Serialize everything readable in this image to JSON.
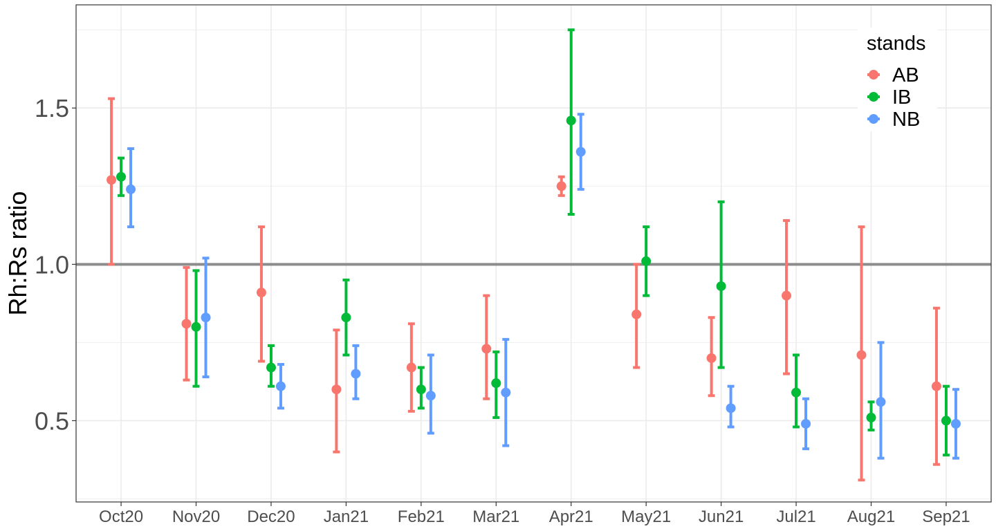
{
  "chart_data": {
    "type": "scatter",
    "subtype": "point-range",
    "ylabel": "Rh:Rs ratio",
    "xlabel": "",
    "categories": [
      "Oct20",
      "Nov20",
      "Dec20",
      "Jan21",
      "Feb21",
      "Mar21",
      "Apr21",
      "May21",
      "Jun21",
      "Jul21",
      "Aug21",
      "Sep21"
    ],
    "ylim": [
      0.24,
      1.83
    ],
    "yticks": [
      0.5,
      1.0,
      1.5
    ],
    "ytick_labels": [
      "0.5",
      "1.0",
      "1.5"
    ],
    "reference_line": {
      "y": 1.0,
      "color": "#8c8c8c"
    },
    "grid": true,
    "legend": {
      "title": "stands",
      "position": "top-right"
    },
    "series": [
      {
        "name": "AB",
        "color": "#F8766D",
        "values": [
          1.27,
          0.81,
          0.91,
          0.6,
          0.67,
          0.73,
          1.25,
          0.84,
          0.7,
          0.9,
          0.71,
          0.61
        ],
        "lower": [
          1.0,
          0.63,
          0.69,
          0.4,
          0.53,
          0.57,
          1.22,
          0.67,
          0.58,
          0.65,
          0.31,
          0.36
        ],
        "upper": [
          1.53,
          0.99,
          1.12,
          0.79,
          0.81,
          0.9,
          1.28,
          1.0,
          0.83,
          1.14,
          1.12,
          0.86
        ]
      },
      {
        "name": "IB",
        "color": "#00BA38",
        "values": [
          1.28,
          0.8,
          0.67,
          0.83,
          0.6,
          0.62,
          1.46,
          1.01,
          0.93,
          0.59,
          0.51,
          0.5
        ],
        "lower": [
          1.22,
          0.61,
          0.61,
          0.71,
          0.54,
          0.51,
          1.16,
          0.9,
          0.67,
          0.48,
          0.47,
          0.39
        ],
        "upper": [
          1.34,
          0.98,
          0.74,
          0.95,
          0.67,
          0.72,
          1.75,
          1.12,
          1.2,
          0.71,
          0.56,
          0.61
        ]
      },
      {
        "name": "NB",
        "color": "#619CFF",
        "values": [
          1.24,
          0.83,
          0.61,
          0.65,
          0.58,
          0.59,
          1.36,
          null,
          0.54,
          0.49,
          0.56,
          0.49
        ],
        "lower": [
          1.12,
          0.64,
          0.54,
          0.57,
          0.46,
          0.42,
          1.24,
          null,
          0.48,
          0.41,
          0.38,
          0.38
        ],
        "upper": [
          1.37,
          1.02,
          0.68,
          0.74,
          0.71,
          0.76,
          1.48,
          null,
          0.61,
          0.57,
          0.75,
          0.6
        ]
      }
    ]
  }
}
